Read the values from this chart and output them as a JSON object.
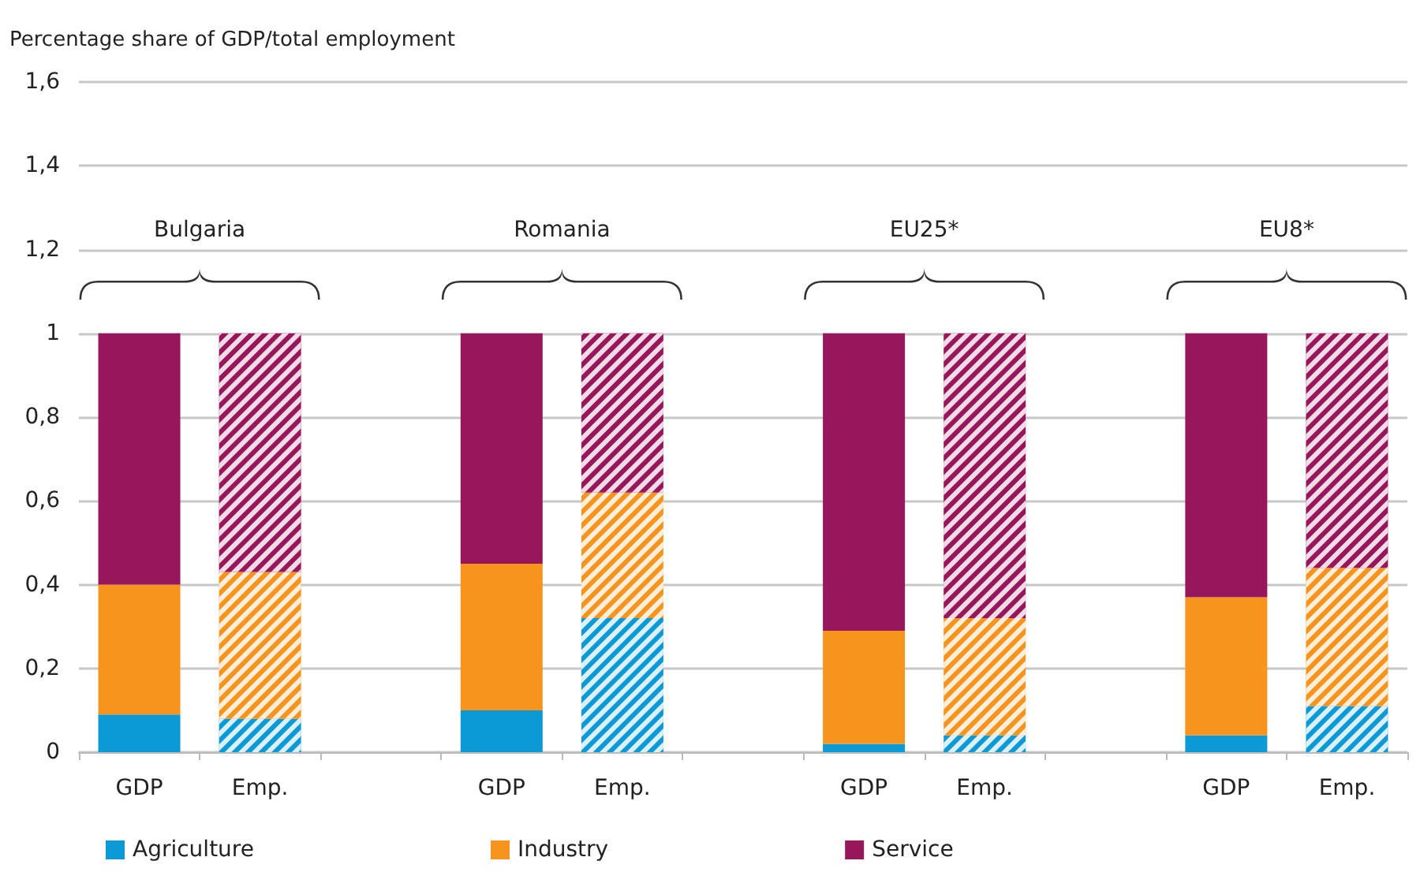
{
  "chart_data": {
    "type": "bar",
    "stacked": true,
    "ylabel": "Percentage share of GDP/total employment",
    "categories": [
      "GDP",
      "Emp.",
      null,
      "GDP",
      "Emp.",
      null,
      "GDP",
      "Emp.",
      null,
      "GDP",
      "Emp."
    ],
    "series": [
      {
        "name": "Agriculture",
        "color": "#0b9ad6",
        "values": [
          0.09,
          0.08,
          null,
          0.1,
          0.32,
          null,
          0.02,
          0.04,
          null,
          0.04,
          0.11
        ]
      },
      {
        "name": "Industry",
        "color": "#f7941d",
        "values": [
          0.31,
          0.35,
          null,
          0.35,
          0.3,
          null,
          0.27,
          0.28,
          null,
          0.33,
          0.33
        ]
      },
      {
        "name": "Service",
        "color": "#98165b",
        "values": [
          0.6,
          0.57,
          null,
          0.55,
          0.38,
          null,
          0.71,
          0.68,
          null,
          0.63,
          0.56
        ]
      }
    ],
    "ylim": [
      0,
      1.6
    ],
    "yticks": [
      0,
      {
        "value": 0.2,
        "label": "0,2"
      },
      {
        "value": 0.4,
        "label": "0,4"
      },
      {
        "value": 0.6,
        "label": "0,6"
      },
      {
        "value": 0.8,
        "label": "0,8"
      },
      1,
      {
        "value": 1.2,
        "label": "1,2"
      },
      {
        "value": 1.4,
        "label": "1,4"
      },
      {
        "value": 1.6,
        "label": "1,6"
      }
    ],
    "annotations": [
      "Bulgaria",
      "Romania",
      "EU25*",
      "EU8*"
    ],
    "grid": "y",
    "legend": "bottom left"
  }
}
